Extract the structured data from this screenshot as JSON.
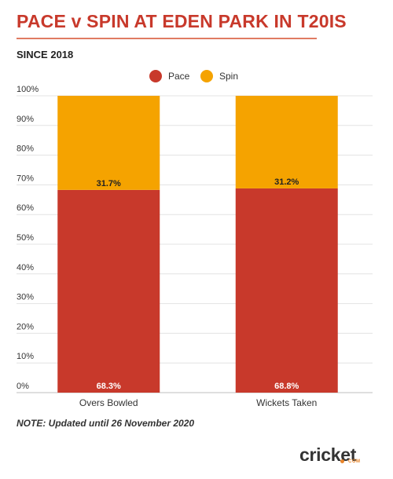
{
  "title": "PACE v SPIN AT EDEN PARK IN T20IS",
  "subtitle": "SINCE 2018",
  "note": "NOTE: Updated until 26 November 2020",
  "logo": {
    "text": "cricket",
    "sub": "COM"
  },
  "colors": {
    "pace": "#c8392b",
    "spin": "#f5a300",
    "title": "#c8392b"
  },
  "chart_data": {
    "type": "bar",
    "stacked": true,
    "categories": [
      "Overs Bowled",
      "Wickets Taken"
    ],
    "series": [
      {
        "name": "Pace",
        "values": [
          68.3,
          68.8
        ],
        "labels": [
          "68.3%",
          "68.8%"
        ],
        "color": "#c8392b"
      },
      {
        "name": "Spin",
        "values": [
          31.7,
          31.2
        ],
        "labels": [
          "31.7%",
          "31.2%"
        ],
        "color": "#f5a300"
      }
    ],
    "ylim": [
      0,
      100
    ],
    "yticks": [
      0,
      10,
      20,
      30,
      40,
      50,
      60,
      70,
      80,
      90,
      100
    ],
    "ytick_labels": [
      "0%",
      "10%",
      "20%",
      "30%",
      "40%",
      "50%",
      "60%",
      "70%",
      "80%",
      "90%",
      "100%"
    ],
    "grid": true,
    "legend_position": "top-center"
  }
}
